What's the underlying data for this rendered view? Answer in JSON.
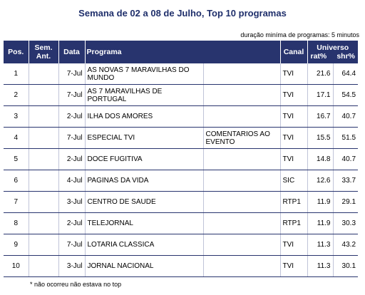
{
  "title": "Semana de 02 a 08 de Julho, Top 10 programas",
  "note_top": "duração miníma de programas: 5 minutos",
  "headers": {
    "pos": "Pos.",
    "sem_ant": "Sem. Ant.",
    "data": "Data",
    "programa": "Programa",
    "canal": "Canal",
    "universo": "Universo",
    "rat": "rat%",
    "shr": "shr%"
  },
  "rows": [
    {
      "pos": "1",
      "sem_ant": "",
      "data": "7-Jul",
      "programa": "AS NOVAS 7 MARAVILHAS DO MUNDO",
      "extra": "",
      "canal": "TVI",
      "rat": "21.6",
      "shr": "64.4"
    },
    {
      "pos": "2",
      "sem_ant": "",
      "data": "7-Jul",
      "programa": "AS 7 MARAVILHAS DE PORTUGAL",
      "extra": "",
      "canal": "TVI",
      "rat": "17.1",
      "shr": "54.5"
    },
    {
      "pos": "3",
      "sem_ant": "",
      "data": "2-Jul",
      "programa": "ILHA DOS AMORES",
      "extra": "",
      "canal": "TVI",
      "rat": "16.7",
      "shr": "40.7"
    },
    {
      "pos": "4",
      "sem_ant": "",
      "data": "7-Jul",
      "programa": "ESPECIAL TVI",
      "extra": "COMENTARIOS AO EVENTO",
      "canal": "TVI",
      "rat": "15.5",
      "shr": "51.5"
    },
    {
      "pos": "5",
      "sem_ant": "",
      "data": "2-Jul",
      "programa": "DOCE FUGITIVA",
      "extra": "",
      "canal": "TVI",
      "rat": "14.8",
      "shr": "40.7"
    },
    {
      "pos": "6",
      "sem_ant": "",
      "data": "4-Jul",
      "programa": "PAGINAS DA VIDA",
      "extra": "",
      "canal": "SIC",
      "rat": "12.6",
      "shr": "33.7"
    },
    {
      "pos": "7",
      "sem_ant": "",
      "data": "3-Jul",
      "programa": "CENTRO DE SAUDE",
      "extra": "",
      "canal": "RTP1",
      "rat": "11.9",
      "shr": "29.1"
    },
    {
      "pos": "8",
      "sem_ant": "",
      "data": "2-Jul",
      "programa": "TELEJORNAL",
      "extra": "",
      "canal": "RTP1",
      "rat": "11.9",
      "shr": "30.3"
    },
    {
      "pos": "9",
      "sem_ant": "",
      "data": "7-Jul",
      "programa": "LOTARIA CLASSICA",
      "extra": "",
      "canal": "TVI",
      "rat": "11.3",
      "shr": "43.2"
    },
    {
      "pos": "10",
      "sem_ant": "",
      "data": "3-Jul",
      "programa": "JORNAL NACIONAL",
      "extra": "",
      "canal": "TVI",
      "rat": "11.3",
      "shr": "30.1"
    }
  ],
  "footnote": "* não ocorreu não estava no top",
  "colors": {
    "header_bg": "#28346e",
    "title": "#1f2f6b"
  }
}
